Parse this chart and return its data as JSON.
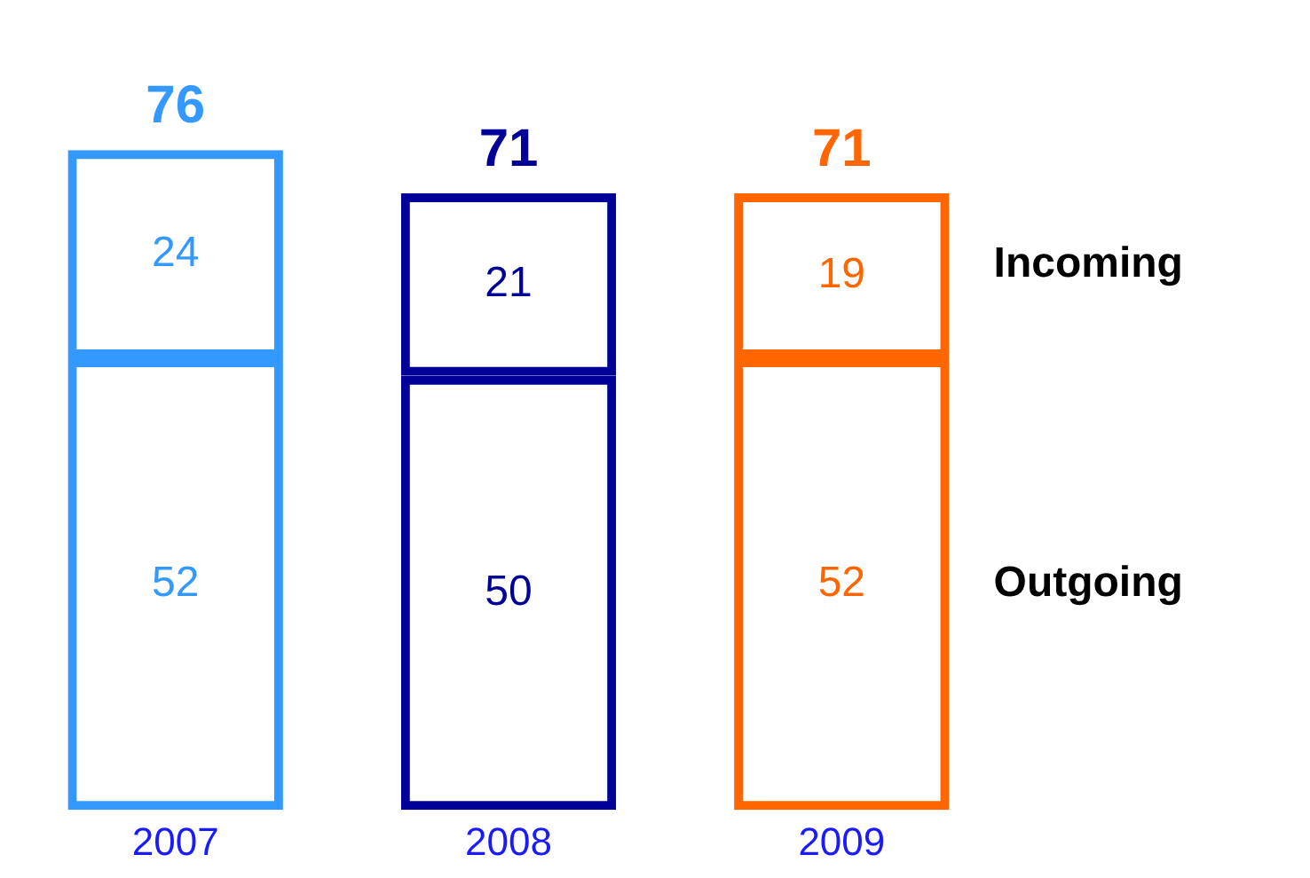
{
  "chart_data": {
    "type": "bar",
    "stacked": true,
    "categories": [
      "2007",
      "2008",
      "2009"
    ],
    "series": [
      {
        "name": "Outgoing",
        "values": [
          52,
          50,
          52
        ],
        "colors": [
          "#3399ff",
          "#000099",
          "#ff6600"
        ]
      },
      {
        "name": "Incoming",
        "values": [
          24,
          21,
          19
        ],
        "colors": [
          "#3399ff",
          "#000099",
          "#ff6600"
        ]
      }
    ],
    "data_labels": true,
    "totals": [
      "76",
      "71",
      "71"
    ],
    "grid": false,
    "legend": false,
    "tick_labels": "x"
  }
}
